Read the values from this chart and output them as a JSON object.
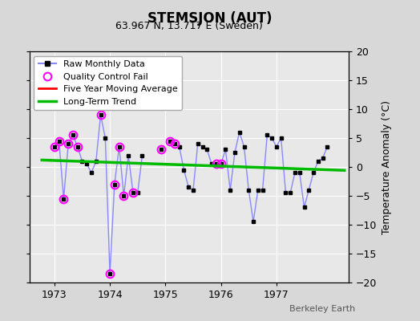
{
  "title": "STEMSJON (AUT)",
  "subtitle": "63.967 N, 13.717 E (Sweden)",
  "ylabel": "Temperature Anomaly (°C)",
  "credit": "Berkeley Earth",
  "ylim": [
    -20,
    20
  ],
  "yticks": [
    -20,
    -15,
    -10,
    -5,
    0,
    5,
    10,
    15,
    20
  ],
  "bg_color": "#d8d8d8",
  "plot_bg_color": "#e8e8e8",
  "grid_color": "#ffffff",
  "months": [
    1973.0,
    1973.083,
    1973.167,
    1973.25,
    1973.333,
    1973.417,
    1973.5,
    1973.583,
    1973.667,
    1973.75,
    1973.833,
    1973.917,
    1974.0,
    1974.083,
    1974.167,
    1974.25,
    1974.333,
    1974.417,
    1974.5,
    1974.583,
    1974.667,
    1974.75,
    1974.833,
    1974.917,
    1975.0,
    1975.083,
    1975.167,
    1975.25,
    1975.333,
    1975.417,
    1975.5,
    1975.583,
    1975.667,
    1975.75,
    1975.833,
    1975.917,
    1976.0,
    1976.083,
    1976.167,
    1976.25,
    1976.333,
    1976.417,
    1976.5,
    1976.583,
    1976.667,
    1976.75,
    1976.833,
    1976.917,
    1977.0,
    1977.083,
    1977.167,
    1977.25,
    1977.333,
    1977.417,
    1977.5,
    1977.583,
    1977.667,
    1977.75,
    1977.833,
    1977.917
  ],
  "values": [
    3.5,
    4.5,
    -5.5,
    4.0,
    5.5,
    3.5,
    1.0,
    0.5,
    -1.0,
    1.0,
    9.0,
    5.0,
    -18.5,
    -3.0,
    3.5,
    -5.0,
    2.0,
    -4.5,
    -4.5,
    2.0,
    null,
    null,
    null,
    3.0,
    null,
    4.5,
    4.0,
    3.5,
    -0.5,
    -3.5,
    -4.0,
    4.0,
    3.5,
    3.0,
    0.5,
    0.5,
    0.5,
    3.0,
    -4.0,
    2.5,
    6.0,
    3.5,
    -4.0,
    -9.5,
    -4.0,
    -4.0,
    5.5,
    5.0,
    3.5,
    5.0,
    -4.5,
    -4.5,
    -1.0,
    -1.0,
    -7.0,
    -4.0,
    -1.0,
    1.0,
    1.5,
    3.5
  ],
  "qc_fail_indices": [
    0,
    1,
    2,
    3,
    4,
    5,
    10,
    12,
    13,
    14,
    15,
    17,
    23,
    25,
    26,
    35,
    36
  ],
  "trend_x": [
    1972.75,
    1978.25
  ],
  "trend_y": [
    1.2,
    -0.6
  ],
  "line_color": "#8888ff",
  "marker_color": "#000000",
  "marker_size": 3.5,
  "qc_color": "#ff00ff",
  "qc_marker_size": 7,
  "trend_color": "#00bb00",
  "trend_lw": 2.5,
  "mavg_color": "#ff0000",
  "line_lw": 1.0,
  "xlim": [
    1972.55,
    1978.3
  ],
  "xticks": [
    1973,
    1974,
    1975,
    1976,
    1977
  ],
  "legend_fontsize": 8,
  "title_fontsize": 12,
  "subtitle_fontsize": 9,
  "tick_labelsize": 9,
  "ylabel_fontsize": 9
}
